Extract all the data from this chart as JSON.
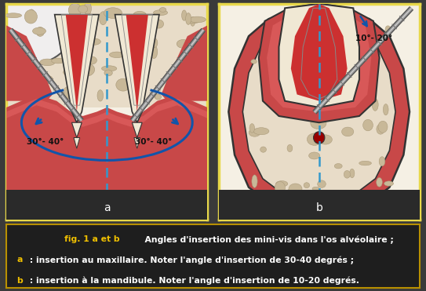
{
  "fig_width": 5.43,
  "fig_height": 3.71,
  "dpi": 100,
  "bg_color": "#3a3a3a",
  "panel_bg_a": "#f5f0e4",
  "panel_bg_b": "#f5f0e4",
  "caption_bg": "#1e1e1e",
  "yellow_border": "#e8d84a",
  "caption_border": "#b89000",
  "caption_highlight": "#f0c000",
  "caption_white": "#ffffff",
  "panel_bar_bg": "#2a2a2a",
  "bone_fill": "#e8dcc8",
  "bone_pore": "#c8b898",
  "bone_pore_edge": "#a89878",
  "gum_dark": "#c84848",
  "gum_mid": "#d85858",
  "gum_light": "#e87070",
  "dentin_fill": "#f0e8d4",
  "pulp_fill": "#cc3030",
  "screw_dark": "#666666",
  "screw_light": "#aaaaaa",
  "dash_color": "#3399cc",
  "arrow_blue": "#1155aa",
  "angle_a_text": "30°- 40°",
  "angle_b_text": "10°- 20°",
  "cap_line1a": "fig. 1 a et b",
  "cap_line1b": "  Angles d'insertion des mini-vis dans l'os alvéolaire ;",
  "cap_line2a": "a",
  "cap_line2b": " : insertion au maxillaire. Noter l'angle d'insertion de 30-40 degrés ;",
  "cap_line3a": "b",
  "cap_line3b": " : insertion à la mandibule. Noter l'angle d'insertion de 10-20 degrés.",
  "label_a": "a",
  "label_b": "b"
}
